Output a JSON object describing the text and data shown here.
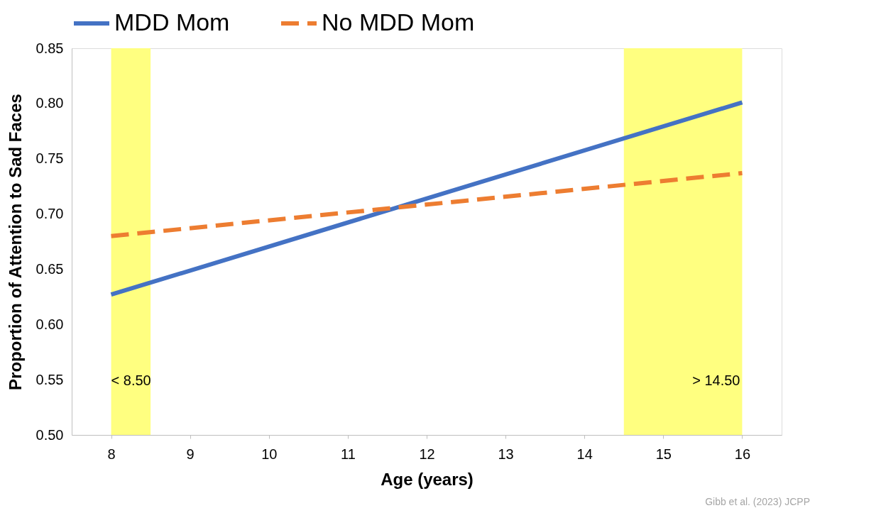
{
  "chart_data": {
    "type": "line",
    "xlabel": "Age (years)",
    "ylabel": "Proportion of Attention to Sad Faces",
    "xlim": [
      7.5,
      16.5
    ],
    "xticks": [
      8,
      9,
      10,
      11,
      12,
      13,
      14,
      15,
      16
    ],
    "ylim": [
      0.5,
      0.85
    ],
    "yticks": [
      {
        "value": 0.5,
        "label": "0.50"
      },
      {
        "value": 0.55,
        "label": "0.55"
      },
      {
        "value": 0.6,
        "label": "0.60"
      },
      {
        "value": 0.65,
        "label": "0.65"
      },
      {
        "value": 0.7,
        "label": "0.70"
      },
      {
        "value": 0.75,
        "label": "0.75"
      },
      {
        "value": 0.8,
        "label": "0.80"
      },
      {
        "value": 0.85,
        "label": "0.85"
      }
    ],
    "x": [
      8,
      16
    ],
    "series": [
      {
        "name": "MDD Mom",
        "color": "#4472c4",
        "values": [
          0.627,
          0.801
        ],
        "line_style": "solid"
      },
      {
        "name": "No MDD Mom",
        "color": "#ed7d31",
        "values": [
          0.68,
          0.737
        ],
        "line_style": "dashed"
      }
    ],
    "bands": [
      {
        "axis": "x",
        "from": 8,
        "to": 8.5,
        "label": "< 8.50",
        "color": "#ffff80"
      },
      {
        "axis": "x",
        "from": 14.5,
        "to": 16,
        "label": "> 14.50",
        "color": "#ffff80"
      }
    ],
    "legend": "top",
    "grid": false,
    "marker": "none",
    "annotations": [
      "Gibb et al. (2023) JCPP"
    ]
  }
}
